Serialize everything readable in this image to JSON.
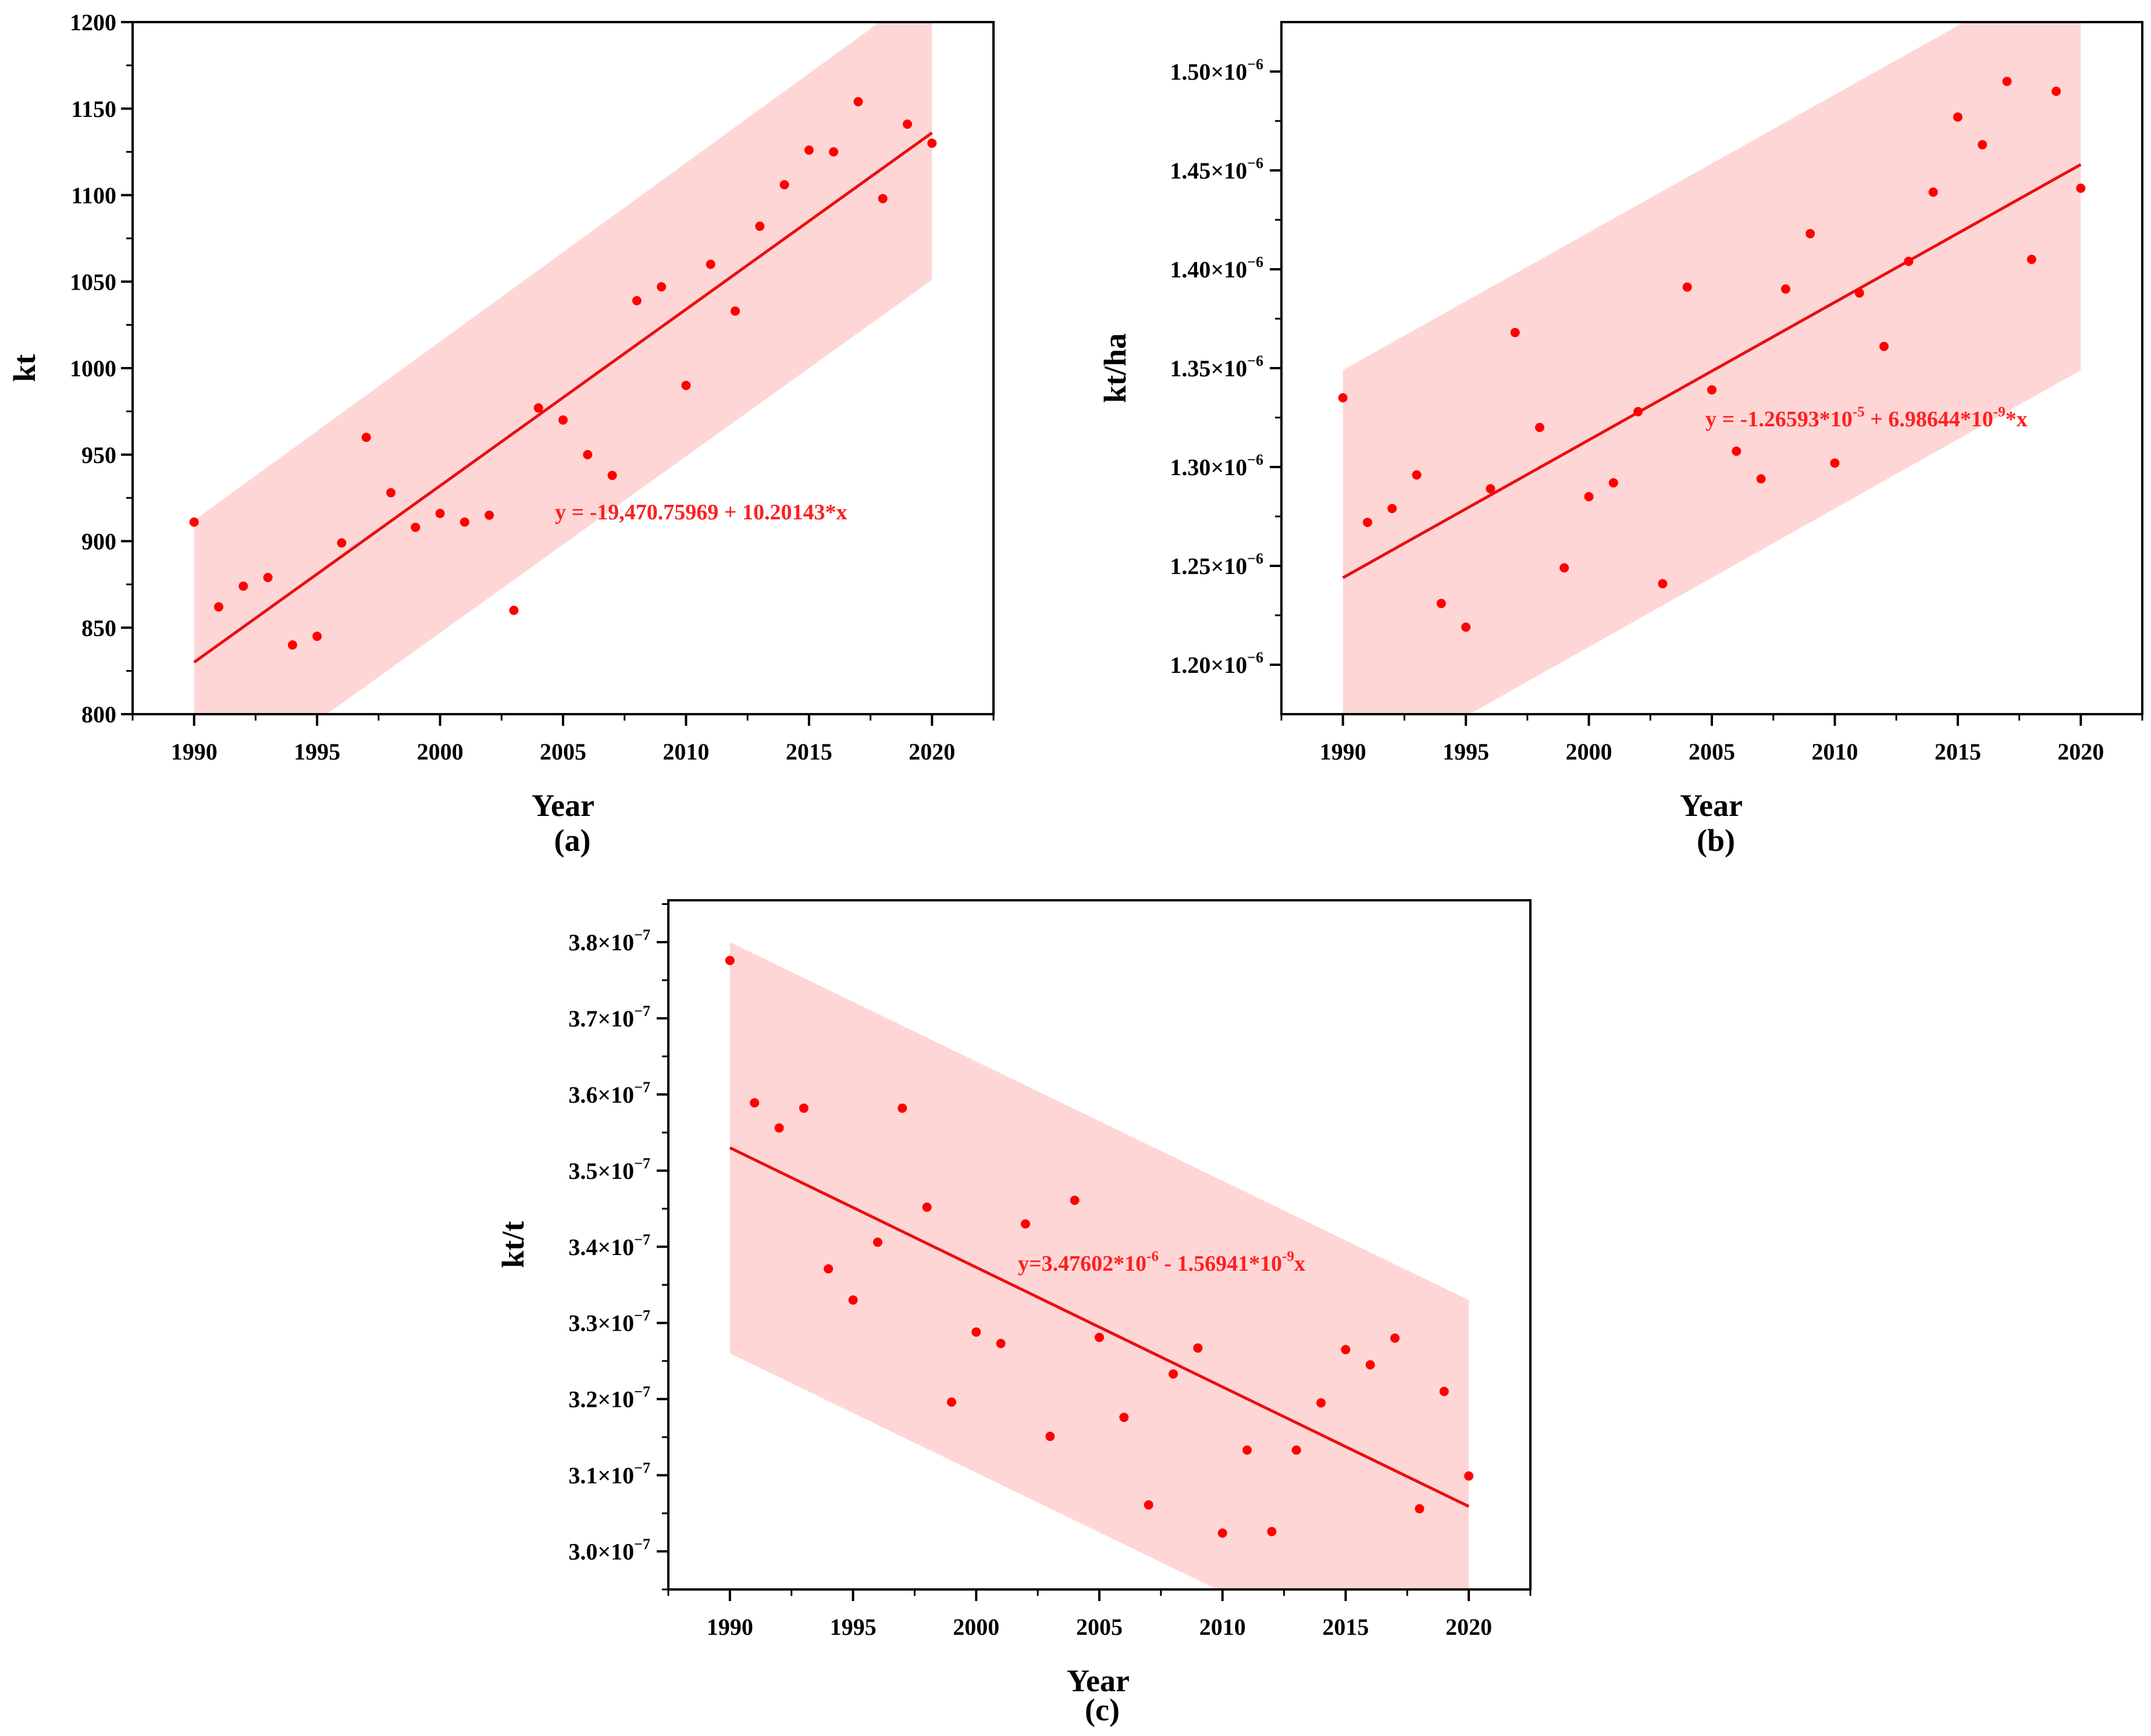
{
  "colors": {
    "point": "#ff0000",
    "fit": "#e81010",
    "band": "#ffd6d6",
    "axis": "#000000"
  },
  "chart_data": [
    {
      "type": "scatter",
      "panel": "(a)",
      "xlabel": "Year",
      "ylabel": "kt",
      "xlim": [
        1987.5,
        2022.5
      ],
      "ylim": [
        800,
        1200
      ],
      "x_ticks": [
        1990,
        1995,
        2000,
        2005,
        2010,
        2015,
        2020
      ],
      "y_ticks": [
        {
          "v": 800,
          "label": "800"
        },
        {
          "v": 850,
          "label": "850"
        },
        {
          "v": 900,
          "label": "900"
        },
        {
          "v": 950,
          "label": "950"
        },
        {
          "v": 1000,
          "label": "1000"
        },
        {
          "v": 1050,
          "label": "1050"
        },
        {
          "v": 1100,
          "label": "1100"
        },
        {
          "v": 1150,
          "label": "1150"
        },
        {
          "v": 1200,
          "label": "1200"
        }
      ],
      "x": [
        1990,
        1991,
        1992,
        1993,
        1994,
        1995,
        1996,
        1997,
        1998,
        1999,
        2000,
        2001,
        2002,
        2003,
        2004,
        2005,
        2006,
        2007,
        2008,
        2009,
        2010,
        2011,
        2012,
        2013,
        2014,
        2015,
        2016,
        2017,
        2018,
        2019,
        2020
      ],
      "y": [
        911,
        862,
        874,
        879,
        840,
        845,
        899,
        960,
        928,
        908,
        916,
        911,
        915,
        860,
        977,
        970,
        950,
        938,
        1039,
        1047,
        990,
        1060,
        1033,
        1082,
        1106,
        1126,
        1125,
        1154,
        1098,
        1141,
        1130
      ],
      "fit": {
        "x": [
          1990,
          2020
        ],
        "y": [
          830,
          1136
        ]
      },
      "band": {
        "upper": [
          912,
          1222
        ],
        "lower": [
          745,
          1051
        ]
      },
      "equation": "y = -19,470.75969 + 10.20143*x"
    },
    {
      "type": "scatter",
      "panel": "(b)",
      "xlabel": "Year",
      "ylabel": "kt/ha",
      "xlim": [
        1987.5,
        2022.5
      ],
      "ylim": [
        1.175e-06,
        1.525e-06
      ],
      "x_ticks": [
        1990,
        1995,
        2000,
        2005,
        2010,
        2015,
        2020
      ],
      "y_ticks": [
        {
          "v": 1.2e-06,
          "label": "1.20×10"
        },
        {
          "v": 1.25e-06,
          "label": "1.25×10"
        },
        {
          "v": 1.3e-06,
          "label": "1.30×10"
        },
        {
          "v": 1.35e-06,
          "label": "1.35×10"
        },
        {
          "v": 1.4e-06,
          "label": "1.40×10"
        },
        {
          "v": 1.45e-06,
          "label": "1.45×10"
        },
        {
          "v": 1.5e-06,
          "label": "1.50×10"
        }
      ],
      "y_tick_exponent": "−6",
      "x": [
        1990,
        1991,
        1992,
        1993,
        1994,
        1995,
        1996,
        1997,
        1998,
        1999,
        2000,
        2001,
        2002,
        2003,
        2004,
        2005,
        2006,
        2007,
        2008,
        2009,
        2010,
        2011,
        2012,
        2013,
        2014,
        2015,
        2016,
        2017,
        2018,
        2019,
        2020
      ],
      "y": [
        1.335e-06,
        1.272e-06,
        1.279e-06,
        1.296e-06,
        1.231e-06,
        1.219e-06,
        1.289e-06,
        1.368e-06,
        1.32e-06,
        1.249e-06,
        1.285e-06,
        1.292e-06,
        1.328e-06,
        1.241e-06,
        1.391e-06,
        1.339e-06,
        1.308e-06,
        1.294e-06,
        1.39e-06,
        1.418e-06,
        1.302e-06,
        1.388e-06,
        1.361e-06,
        1.404e-06,
        1.439e-06,
        1.477e-06,
        1.463e-06,
        1.495e-06,
        1.405e-06,
        1.49e-06,
        1.441e-06
      ],
      "fit": {
        "x": [
          1990,
          2020
        ],
        "y": [
          1.244e-06,
          1.453e-06
        ]
      },
      "band": {
        "upper": [
          1.349e-06,
          1.558e-06
        ],
        "lower": [
          1.139e-06,
          1.349e-06
        ]
      },
      "equation_parts": [
        "y = -1.26593*10",
        "-5",
        " + 6.98644*10",
        "-9",
        "*x"
      ]
    },
    {
      "type": "scatter",
      "panel": "(c)",
      "xlabel": "Year",
      "ylabel": "kt/t",
      "xlim": [
        1987.5,
        2022.5
      ],
      "ylim": [
        2.95e-07,
        3.855e-07
      ],
      "x_ticks": [
        1990,
        1995,
        2000,
        2005,
        2010,
        2015,
        2020
      ],
      "y_ticks": [
        {
          "v": 3e-07,
          "label": "3.0×10"
        },
        {
          "v": 3.1e-07,
          "label": "3.1×10"
        },
        {
          "v": 3.2e-07,
          "label": "3.2×10"
        },
        {
          "v": 3.3e-07,
          "label": "3.3×10"
        },
        {
          "v": 3.4e-07,
          "label": "3.4×10"
        },
        {
          "v": 3.5e-07,
          "label": "3.5×10"
        },
        {
          "v": 3.6e-07,
          "label": "3.6×10"
        },
        {
          "v": 3.7e-07,
          "label": "3.7×10"
        },
        {
          "v": 3.8e-07,
          "label": "3.8×10"
        }
      ],
      "y_tick_exponent": "−7",
      "x": [
        1990,
        1991,
        1992,
        1993,
        1994,
        1995,
        1996,
        1997,
        1998,
        1999,
        2000,
        2001,
        2002,
        2003,
        2004,
        2005,
        2006,
        2007,
        2008,
        2009,
        2010,
        2011,
        2012,
        2013,
        2014,
        2015,
        2016,
        2017,
        2018,
        2019,
        2020
      ],
      "y": [
        3.776e-07,
        3.589e-07,
        3.556e-07,
        3.582e-07,
        3.371e-07,
        3.33e-07,
        3.406e-07,
        3.582e-07,
        3.452e-07,
        3.196e-07,
        3.288e-07,
        3.273e-07,
        3.43e-07,
        3.151e-07,
        3.461e-07,
        3.281e-07,
        3.176e-07,
        3.061e-07,
        3.233e-07,
        3.267e-07,
        3.024e-07,
        3.133e-07,
        3.026e-07,
        3.133e-07,
        3.195e-07,
        3.265e-07,
        3.245e-07,
        3.28e-07,
        3.056e-07,
        3.21e-07,
        3.099e-07
      ],
      "fit": {
        "x": [
          1990,
          2020
        ],
        "y": [
          3.53e-07,
          3.059e-07
        ]
      },
      "band": {
        "upper": [
          3.8e-07,
          3.33e-07
        ],
        "lower": [
          3.26e-07,
          2.79e-07
        ]
      },
      "equation_parts": [
        "y=3.47602*10",
        "-6",
        " - 1.56941*10",
        "-9",
        "x"
      ]
    }
  ]
}
